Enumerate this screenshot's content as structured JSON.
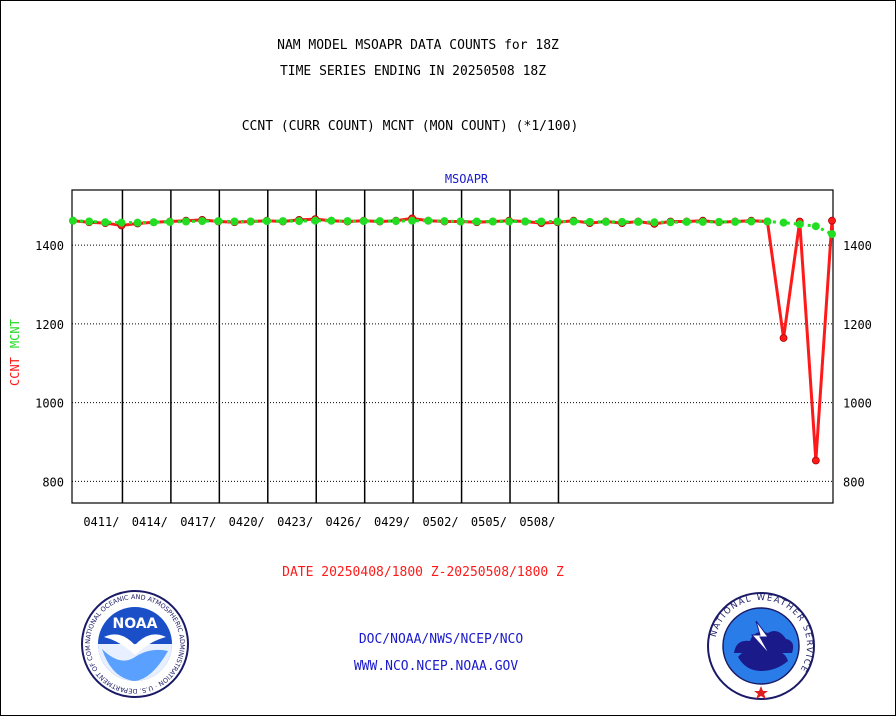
{
  "title_line1": "NAM MODEL MSOAPR DATA COUNTS for 18Z",
  "title_line2": "TIME SERIES ENDING IN 20250508 18Z",
  "subtitle": "CCNT (CURR COUNT) MCNT (MON COUNT) (*1/100)",
  "date_range": "DATE 20250408/1800 Z-20250508/1800 Z",
  "footer_line1": "DOC/NOAA/NWS/NCEP/NCO",
  "footer_line2": "WWW.NCO.NCEP.NOAA.GOV",
  "logos": {
    "left": {
      "icon": "noaa-logo-icon",
      "text": "NOAA",
      "ring_text": "NATIONAL OCEANIC AND ATMOSPHERIC ADMINISTRATION · U.S. DEPARTMENT OF COMMERCE"
    },
    "right": {
      "icon": "nws-logo-icon",
      "ring_text": "NATIONAL WEATHER SERVICE"
    }
  },
  "chart_data": {
    "type": "line",
    "title": "MSOAPR",
    "ylabel_parts": [
      "CCNT",
      "MCNT"
    ],
    "ylim": [
      745,
      1540
    ],
    "y_ticks": [
      800,
      1000,
      1200,
      1400
    ],
    "x_tick_labels": [
      "0411/",
      "0414/",
      "0417/",
      "0420/",
      "0423/",
      "0426/",
      "0429/",
      "0502/",
      "0505/",
      "0508/"
    ],
    "grid": true,
    "colors": {
      "ccnt": "#ff1a1a",
      "mcnt": "#22dd22",
      "title": "#1a1acc",
      "date": "#ff1a1a",
      "footer": "#1a1acc"
    },
    "series": [
      {
        "name": "CCNT",
        "values": [
          1462,
          1458,
          1456,
          1450,
          1455,
          1458,
          1460,
          1462,
          1464,
          1460,
          1458,
          1460,
          1462,
          1460,
          1464,
          1466,
          1462,
          1460,
          1462,
          1460,
          1462,
          1468,
          1462,
          1460,
          1460,
          1458,
          1460,
          1462,
          1460,
          1456,
          1458,
          1462,
          1456,
          1460,
          1456,
          1460,
          1454,
          1460,
          1460,
          1462,
          1458,
          1460,
          1462,
          1460,
          1164,
          1460,
          853,
          1462
        ]
      },
      {
        "name": "MCNT",
        "values": [
          1462,
          1460,
          1458,
          1457,
          1457,
          1458,
          1459,
          1460,
          1461,
          1461,
          1460,
          1460,
          1461,
          1461,
          1461,
          1462,
          1462,
          1461,
          1461,
          1461,
          1461,
          1462,
          1462,
          1461,
          1460,
          1460,
          1460,
          1460,
          1460,
          1460,
          1460,
          1460,
          1459,
          1459,
          1459,
          1459,
          1458,
          1458,
          1459,
          1459,
          1459,
          1459,
          1460,
          1460,
          1457,
          1453,
          1448,
          1428
        ]
      }
    ]
  }
}
